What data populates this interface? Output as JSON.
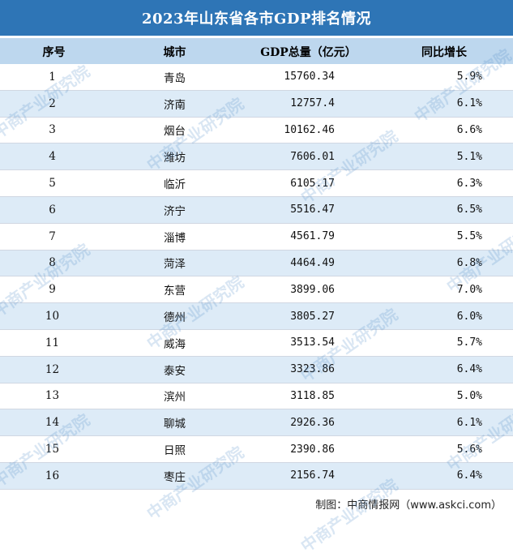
{
  "title": "2023年山东省各市GDP排名情况",
  "headers": [
    "序号",
    "城市",
    "GDP总量（亿元）",
    "同比增长"
  ],
  "rows": [
    {
      "rank": "1",
      "city": "青岛",
      "gdp": "15760.34",
      "growth": "5.9%"
    },
    {
      "rank": "2",
      "city": "济南",
      "gdp": "12757.4",
      "growth": "6.1%"
    },
    {
      "rank": "3",
      "city": "烟台",
      "gdp": "10162.46",
      "growth": "6.6%"
    },
    {
      "rank": "4",
      "city": "潍坊",
      "gdp": "7606.01",
      "growth": "5.1%"
    },
    {
      "rank": "5",
      "city": "临沂",
      "gdp": "6105.17",
      "growth": "6.3%"
    },
    {
      "rank": "6",
      "city": "济宁",
      "gdp": "5516.47",
      "growth": "6.5%"
    },
    {
      "rank": "7",
      "city": "淄博",
      "gdp": "4561.79",
      "growth": "5.5%"
    },
    {
      "rank": "8",
      "city": "菏泽",
      "gdp": "4464.49",
      "growth": "6.8%"
    },
    {
      "rank": "9",
      "city": "东营",
      "gdp": "3899.06",
      "growth": "7.0%"
    },
    {
      "rank": "10",
      "city": "德州",
      "gdp": "3805.27",
      "growth": "6.0%"
    },
    {
      "rank": "11",
      "city": "威海",
      "gdp": "3513.54",
      "growth": "5.7%"
    },
    {
      "rank": "12",
      "city": "泰安",
      "gdp": "3323.86",
      "growth": "6.4%"
    },
    {
      "rank": "13",
      "city": "滨州",
      "gdp": "3118.85",
      "growth": "5.0%"
    },
    {
      "rank": "14",
      "city": "聊城",
      "gdp": "2926.36",
      "growth": "6.1%"
    },
    {
      "rank": "15",
      "city": "日照",
      "gdp": "2390.86",
      "growth": "5.6%"
    },
    {
      "rank": "16",
      "city": "枣庄",
      "gdp": "2156.74",
      "growth": "6.4%"
    }
  ],
  "source": "制图：中商情报网（www.askci.com）",
  "watermark_text": "中商产业研究院",
  "colors": {
    "title_bg": "#2e75b6",
    "header_bg": "#bdd7ee",
    "stripe": "#ddebf7"
  }
}
